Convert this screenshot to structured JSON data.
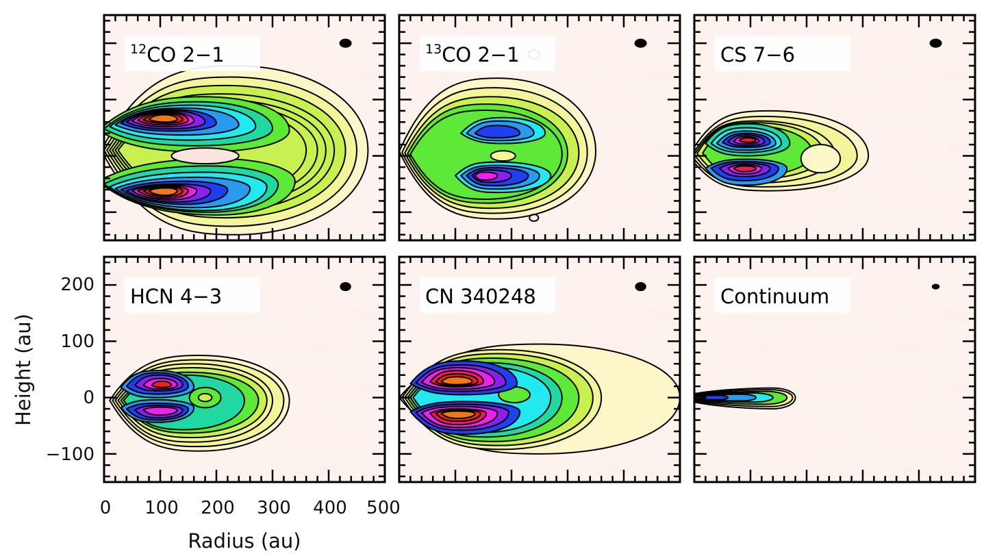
{
  "chart_data": {
    "type": "heatmap",
    "subtype": "contour-map grid",
    "xlabel": "Radius (au)",
    "ylabel": "Height (au)",
    "xlim": [
      0,
      500
    ],
    "ylim": [
      -150,
      250
    ],
    "x_ticks_major": [
      0,
      100,
      200,
      300,
      400,
      500
    ],
    "x_tick_labels": [
      "0",
      "100",
      "200",
      "300",
      "400",
      "500"
    ],
    "x_ticks_minor_step": 20,
    "y_ticks_major": [
      200,
      100,
      0,
      -100
    ],
    "y_tick_labels": [
      "200",
      "100",
      "0",
      "−100"
    ],
    "y_ticks_minor_step": 20,
    "grid": false,
    "layout": "2 rows x 3 columns, shared axes, tick labels only on bottom-left panel",
    "colormap": [
      "#fdf6c8",
      "#f4f49a",
      "#c8f050",
      "#5ee838",
      "#20d8a0",
      "#22e8f0",
      "#2a9af0",
      "#2040f0",
      "#8a20f0",
      "#f020f0",
      "#f01a5a",
      "#f02020",
      "#f07818"
    ],
    "background_color": "#fdf3ee",
    "contour_color": "#000000",
    "panels": [
      {
        "label_sup": "12",
        "label": "CO 2−1",
        "beam": "filled ellipse top-right"
      },
      {
        "label_sup": "13",
        "label": "CO 2−1",
        "beam": "filled ellipse top-right"
      },
      {
        "label_sup": "",
        "label": "CS 7−6",
        "beam": "filled ellipse top-right"
      },
      {
        "label_sup": "",
        "label": "HCN 4−3",
        "beam": "filled ellipse top-right"
      },
      {
        "label_sup": "",
        "label": "CN 340248",
        "beam": "filled ellipse top-right"
      },
      {
        "label_sup": "",
        "label": "Continuum",
        "beam": "small filled ellipse top-right"
      }
    ]
  }
}
